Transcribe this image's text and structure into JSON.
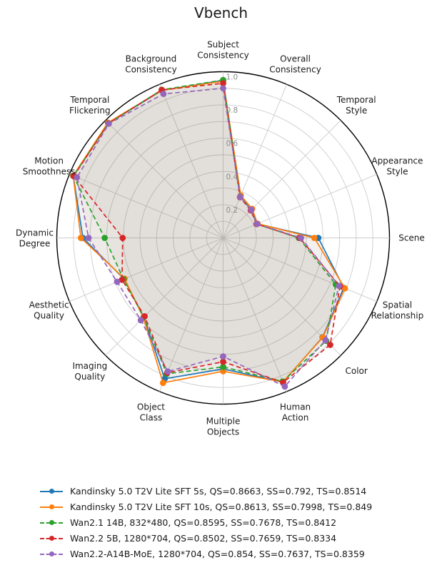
{
  "title": "Vbench",
  "chart_data": {
    "type": "radar",
    "title": "Vbench",
    "axis_range": [
      0,
      1
    ],
    "grid_step": 0.1,
    "radial_ticks": [
      "0.2",
      "0.4",
      "0.6",
      "0.8",
      "1.0"
    ],
    "radial_tick_values": [
      0.2,
      0.4,
      0.6,
      0.8,
      1.0
    ],
    "legend_position": "bottom-left",
    "grid": "on",
    "categories": [
      "Subject Consistency",
      "Overall Consistency",
      "Temporal Style",
      "Appearance Style",
      "Scene",
      "Spatial Relationship",
      "Color",
      "Human Action",
      "Multiple Objects",
      "Object Class",
      "Imaging Quality",
      "Aesthetic Quality",
      "Dynamic Degree",
      "Motion Smoothness",
      "Temporal Flickering",
      "Background Consistency"
    ],
    "series": [
      {
        "name": "Kandinsky 5.0 T2V Lite SFT 5s",
        "label": "Kandinsky 5.0 T2V Lite SFT 5s, QS=0.8663, SS=0.792, TS=0.8514",
        "color": "#1f77b4",
        "line_style": "solid",
        "values": [
          0.948,
          0.27,
          0.24,
          0.222,
          0.572,
          0.785,
          0.845,
          0.94,
          0.788,
          0.917,
          0.675,
          0.645,
          0.843,
          0.975,
          0.976,
          0.96
        ]
      },
      {
        "name": "Kandinsky 5.0 T2V Lite SFT 10s",
        "label": "Kandinsky 5.0 T2V Lite SFT 10s, QS=0.8613, SS=0.7998, TS=0.849",
        "color": "#ff7f0e",
        "line_style": "solid",
        "values": [
          0.943,
          0.277,
          0.247,
          0.224,
          0.548,
          0.792,
          0.847,
          0.938,
          0.802,
          0.944,
          0.678,
          0.641,
          0.855,
          0.976,
          0.98,
          0.961
        ]
      },
      {
        "name": "Wan2.1 14B, 832*480",
        "label": "Wan2.1 14B, 832*480, QS=0.8595, SS=0.7678, TS=0.8412",
        "color": "#2ca02c",
        "line_style": "dashed",
        "values": [
          0.95,
          0.268,
          0.238,
          0.218,
          0.455,
          0.733,
          0.876,
          0.935,
          0.776,
          0.885,
          0.675,
          0.648,
          0.712,
          0.974,
          0.975,
          0.965
        ]
      },
      {
        "name": "Wan2.2 5B, 1280*704",
        "label": "Wan2.2 5B, 1280*704, QS=0.8502, SS=0.7659, TS=0.8334",
        "color": "#d62728",
        "line_style": "dashed",
        "values": [
          0.93,
          0.265,
          0.235,
          0.218,
          0.46,
          0.76,
          0.91,
          0.941,
          0.745,
          0.878,
          0.667,
          0.658,
          0.604,
          0.972,
          0.974,
          0.964
        ]
      },
      {
        "name": "Wan2.2-A14B-MoE, 1280*704",
        "label": "Wan2.2-A14B-MoE, 1280*704, QS=0.854, SS=0.7637, TS=0.8359",
        "color": "#9467bd",
        "line_style": "dashed",
        "values": [
          0.9,
          0.267,
          0.24,
          0.221,
          0.468,
          0.754,
          0.87,
          0.968,
          0.713,
          0.87,
          0.7,
          0.69,
          0.809,
          0.951,
          0.972,
          0.938
        ]
      }
    ],
    "style": {
      "grid_color": "#cccccc",
      "outer_circle_color": "#000000",
      "tick_label_color": "#8c8c8c",
      "category_label_color": "#1a1a1a",
      "fill_color": "#8a7f68",
      "fill_opacity_per_series": 0.05
    }
  }
}
